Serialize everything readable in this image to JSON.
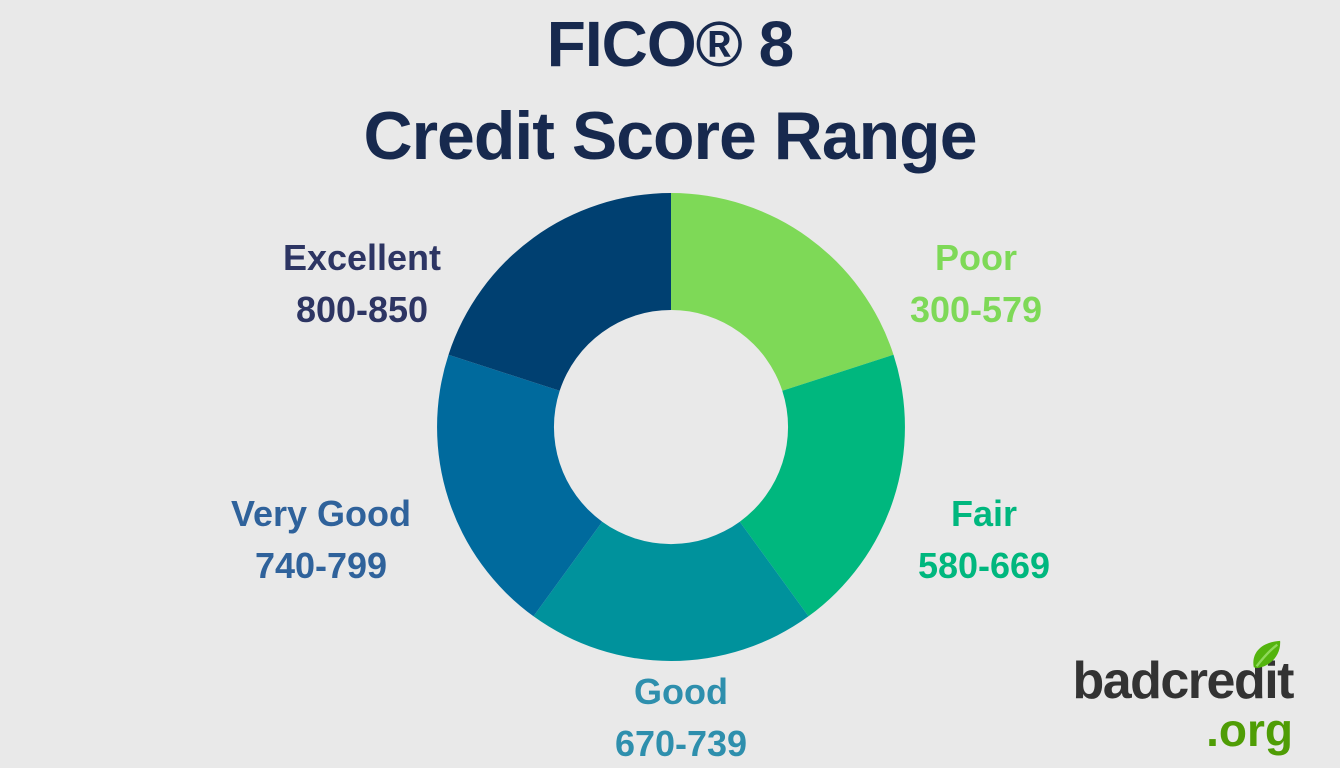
{
  "background_color": "#E9E9E9",
  "title": {
    "line1": "FICO® 8",
    "line2": "Credit Score Range",
    "color": "#17294E"
  },
  "chart_data": {
    "type": "pie",
    "variant": "donut",
    "title": "FICO® 8 Credit Score Range",
    "start_angle_deg": 0,
    "direction": "clockwise",
    "inner_radius_ratio": 0.5,
    "legend_position": "around-chart",
    "segments": [
      {
        "label": "Poor",
        "range": "300-579",
        "value_deg": 72,
        "share": 0.2,
        "slice_color": "#7ED957",
        "label_color": "#7ED957"
      },
      {
        "label": "Fair",
        "range": "580-669",
        "value_deg": 72,
        "share": 0.2,
        "slice_color": "#00B77E",
        "label_color": "#00B77E"
      },
      {
        "label": "Good",
        "range": "670-739",
        "value_deg": 72,
        "share": 0.2,
        "slice_color": "#00929C",
        "label_color": "#2E8FAD"
      },
      {
        "label": "Very Good",
        "range": "740-799",
        "value_deg": 72,
        "share": 0.2,
        "slice_color": "#006A9D",
        "label_color": "#2F629B"
      },
      {
        "label": "Excellent",
        "range": "800-850",
        "value_deg": 72,
        "share": 0.2,
        "slice_color": "#004071",
        "label_color": "#2D3563"
      }
    ]
  },
  "logo": {
    "name": "badcredit",
    "tld": ".org",
    "name_color": "#333333",
    "tld_color": "#4F9D05",
    "leaf_color": "#54B40E",
    "leaf_vein_color": "#8FD95A"
  }
}
